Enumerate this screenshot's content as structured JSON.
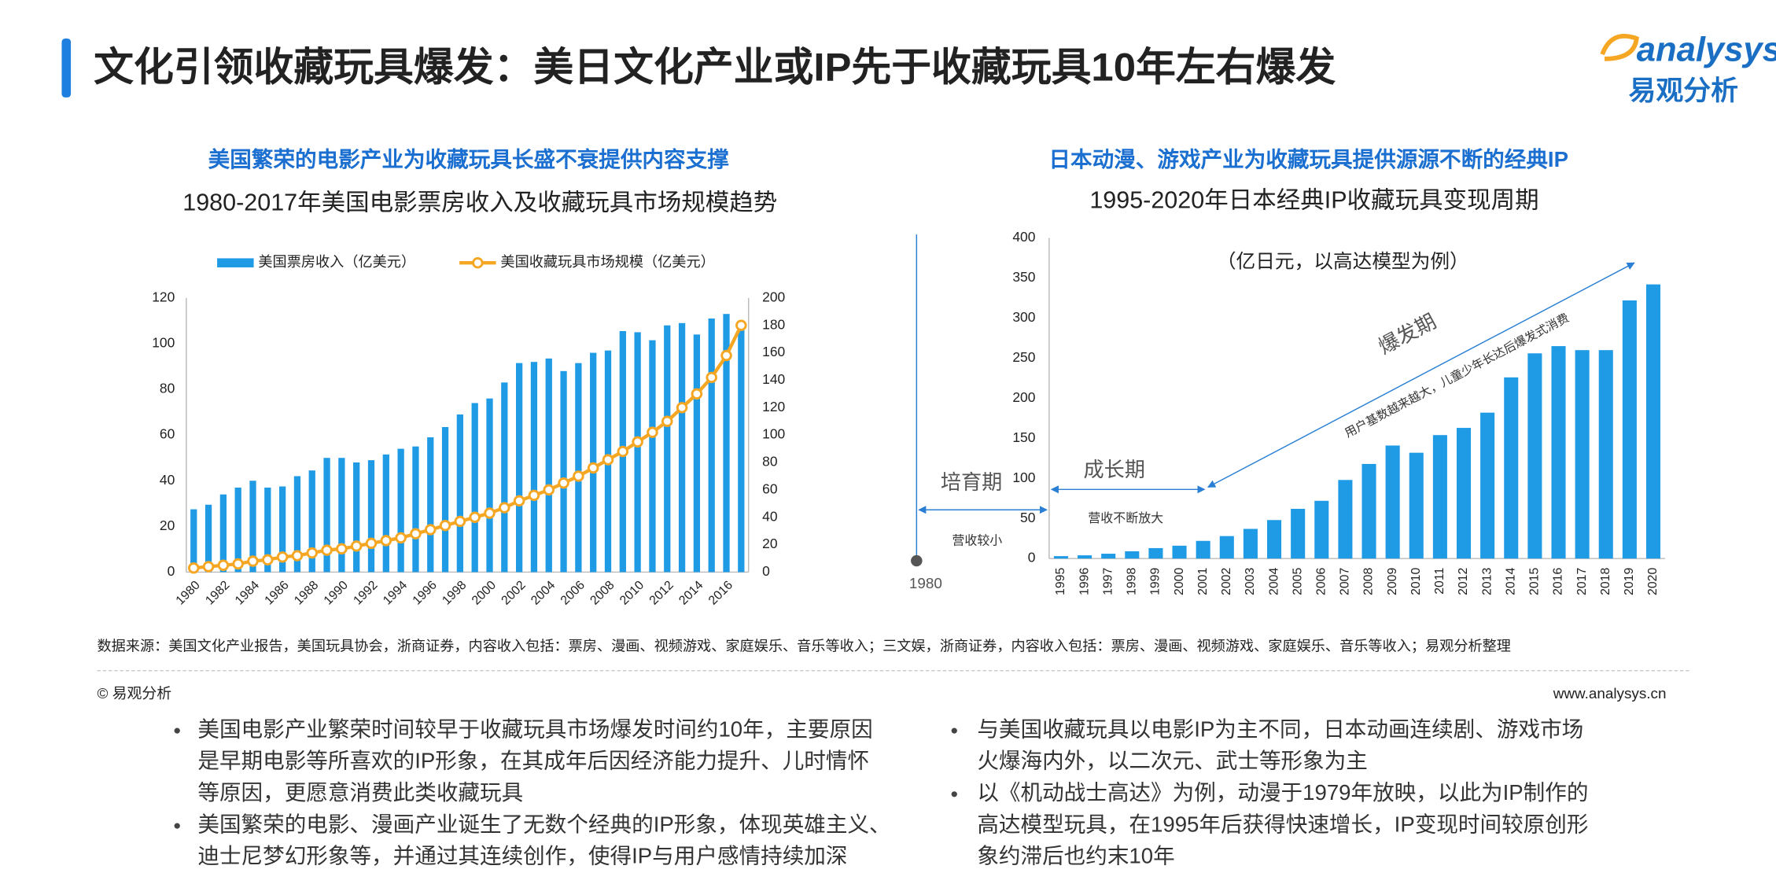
{
  "title": "文化引领收藏玩具爆发：美日文化产业或IP先于收藏玩具10年左右爆发",
  "logo": {
    "brand": "analysys",
    "name": "易观分析"
  },
  "chart_data": [
    {
      "type": "bar",
      "subtitle": "美国繁荣的电影产业为收藏玩具长盛不衰提供内容支撑",
      "title": "1980-2017年美国电影票房收入及收藏玩具市场规模趋势",
      "categories": [
        "1980",
        null,
        "1982",
        null,
        "1984",
        null,
        "1986",
        null,
        "1988",
        null,
        "1990",
        null,
        "1992",
        null,
        "1994",
        null,
        "1996",
        null,
        "1998",
        null,
        "2000",
        null,
        "2002",
        null,
        "2004",
        null,
        "2006",
        null,
        "2008",
        null,
        "2010",
        null,
        "2012",
        null,
        "2014",
        null,
        "2016",
        null
      ],
      "series": [
        {
          "name": "美国票房收入（亿美元）",
          "type": "bar",
          "color": "#1f9be6",
          "values": [
            27.5,
            29.5,
            34,
            37,
            40,
            37,
            37.5,
            42,
            44.5,
            50,
            50,
            48,
            49,
            51.5,
            54,
            55,
            59,
            63.5,
            69,
            74,
            76,
            83,
            91.5,
            92,
            93.5,
            88,
            91.5,
            96,
            97,
            105.5,
            105,
            101.5,
            108,
            109,
            104,
            111,
            113,
            109
          ]
        },
        {
          "name": "美国收藏玩具市场规模（亿美元）",
          "type": "line",
          "axis": "y2",
          "color": "#f5a623",
          "values": [
            3,
            4,
            5,
            6,
            8,
            9,
            11,
            12,
            14,
            16,
            17,
            19,
            21,
            23,
            25,
            28,
            31,
            34,
            37,
            40,
            43,
            47,
            52,
            56,
            60,
            65,
            70,
            76,
            82,
            88,
            95,
            102,
            110,
            120,
            130,
            142,
            158,
            180
          ]
        }
      ],
      "ylim": [
        0,
        120
      ],
      "yticks": [
        0,
        20,
        40,
        60,
        80,
        100,
        120
      ],
      "y2lim": [
        0,
        200
      ],
      "y2ticks": [
        0,
        20,
        40,
        60,
        80,
        100,
        120,
        140,
        160,
        180,
        200
      ],
      "legend": "top"
    },
    {
      "type": "bar",
      "subtitle": "日本动漫、游戏产业为收藏玩具提供源源不断的经典IP",
      "title": "1995-2020年日本经典IP收藏玩具变现周期",
      "categories": [
        "1995",
        "1996",
        "1997",
        "1998",
        "1999",
        "2000",
        "2001",
        "2002",
        "2003",
        "2004",
        "2005",
        "2006",
        "2007",
        "2008",
        "2009",
        "2010",
        "2011",
        "2012",
        "2013",
        "2014",
        "2015",
        "2016",
        "2017",
        "2018",
        "2019",
        "2020"
      ],
      "color": "#1f9be6",
      "values": [
        3,
        4,
        6,
        9,
        13,
        16,
        22,
        28,
        37,
        48,
        62,
        72,
        98,
        118,
        141,
        132,
        154,
        163,
        182,
        226,
        256,
        265,
        260,
        260,
        322,
        342
      ],
      "ylim": [
        0,
        400
      ],
      "yticks": [
        0,
        50,
        100,
        150,
        200,
        250,
        300,
        350,
        400
      ],
      "annotations": [
        "（亿日元，以高达模型为例）",
        "培育期",
        "营收较小",
        "1980",
        "成长期",
        "营收不断放大",
        "爆发期",
        "用户基数越来越大，儿童少年长达后爆发式消费"
      ]
    }
  ],
  "source": "数据来源：美国文化产业报告，美国玩具协会，浙商证券，内容收入包括：票房、漫画、视频游戏、家庭娱乐、音乐等收入；三文娱，浙商证券，内容收入包括：票房、漫画、视频游戏、家庭娱乐、音乐等收入；易观分析整理",
  "footer": {
    "copyright": "© 易观分析",
    "url": "www.analysys.cn"
  },
  "bullets": {
    "left": [
      [
        "美国电影产业繁荣时间较早于收藏玩具市场爆发时间约10年，主要原因",
        "是早期电影等所喜欢的IP形象，在其成年后因经济能力提升、儿时情怀",
        "等原因，更愿意消费此类收藏玩具"
      ],
      [
        "美国繁荣的电影、漫画产业诞生了无数个经典的IP形象，体现英雄主义、",
        "迪士尼梦幻形象等，并通过其连续创作，使得IP与用户感情持续加深"
      ]
    ],
    "right": [
      [
        "与美国收藏玩具以电影IP为主不同，日本动画连续剧、游戏市场",
        "火爆海内外，以二次元、武士等形象为主"
      ],
      [
        "以《机动战士高达》为例，动漫于1979年放映，以此为IP制作的",
        "高达模型玩具，在1995年后获得快速增长，IP变现时间较原创形",
        "象约滞后也约末10年"
      ]
    ]
  }
}
